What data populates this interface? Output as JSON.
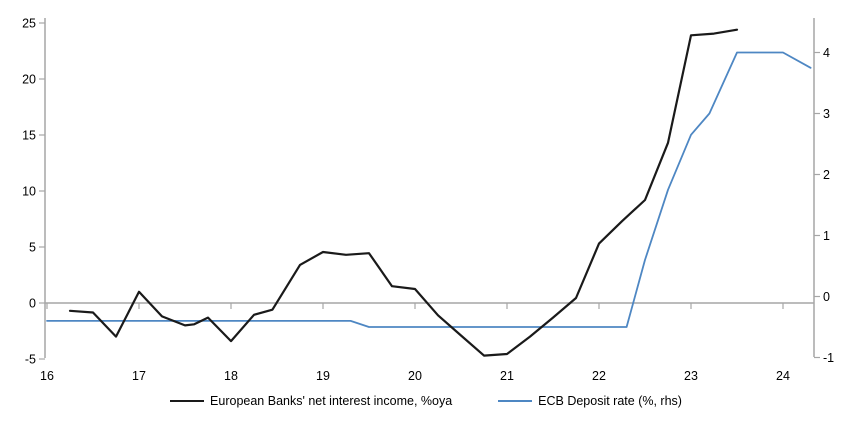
{
  "chart_data": {
    "type": "line",
    "title": "",
    "x_axis": {
      "min": 16,
      "max": 24.35,
      "ticks": [
        "16",
        "17",
        "18",
        "19",
        "20",
        "21",
        "22",
        "23",
        "24"
      ]
    },
    "left_axis": {
      "min": -5,
      "max": 25,
      "ticks": [
        25,
        20,
        15,
        10,
        5,
        0,
        -5
      ]
    },
    "right_axis": {
      "min": -1,
      "max": 4.5,
      "ticks": [
        4,
        3,
        2,
        1,
        0,
        -1
      ]
    },
    "grid": "horizontal zero line only",
    "legend_position": "bottom center",
    "axis_color": "#a6a6a6",
    "series": [
      {
        "name": "European Banks' net interest income, %oya",
        "axis": "left",
        "color": "#1a1a1a",
        "stroke_width": 2.2,
        "points": [
          [
            16.25,
            -0.7
          ],
          [
            16.5,
            -0.85
          ],
          [
            16.75,
            -3.0
          ],
          [
            17.0,
            1.0
          ],
          [
            17.25,
            -1.2
          ],
          [
            17.5,
            -2.0
          ],
          [
            17.6,
            -1.9
          ],
          [
            17.75,
            -1.3
          ],
          [
            18.0,
            -3.4
          ],
          [
            18.25,
            -1.05
          ],
          [
            18.45,
            -0.6
          ],
          [
            18.75,
            3.4
          ],
          [
            19.0,
            4.55
          ],
          [
            19.25,
            4.3
          ],
          [
            19.5,
            4.45
          ],
          [
            19.75,
            1.5
          ],
          [
            20.0,
            1.25
          ],
          [
            20.25,
            -1.1
          ],
          [
            20.5,
            -2.9
          ],
          [
            20.75,
            -4.7
          ],
          [
            21.0,
            -4.55
          ],
          [
            21.25,
            -3.0
          ],
          [
            21.5,
            -1.3
          ],
          [
            21.75,
            0.45
          ],
          [
            22.0,
            5.3
          ],
          [
            22.25,
            7.3
          ],
          [
            22.5,
            9.2
          ],
          [
            22.75,
            14.3
          ],
          [
            23.0,
            23.9
          ],
          [
            23.25,
            24.05
          ],
          [
            23.5,
            24.4
          ]
        ]
      },
      {
        "name": "ECB Deposit rate (%, rhs)",
        "axis": "right",
        "color": "#4e87c3",
        "stroke_width": 1.8,
        "points": [
          [
            16.0,
            -0.4
          ],
          [
            19.3,
            -0.4
          ],
          [
            19.5,
            -0.5
          ],
          [
            22.3,
            -0.5
          ],
          [
            22.5,
            0.6
          ],
          [
            22.75,
            1.75
          ],
          [
            23.0,
            2.65
          ],
          [
            23.2,
            3.0
          ],
          [
            23.5,
            4.0
          ],
          [
            24.0,
            4.0
          ],
          [
            24.3,
            3.75
          ]
        ]
      }
    ]
  },
  "legend": {
    "items": [
      {
        "label": "European Banks' net interest income, %oya",
        "color": "#1a1a1a"
      },
      {
        "label": "ECB Deposit rate (%, rhs)",
        "color": "#4e87c3"
      }
    ]
  }
}
